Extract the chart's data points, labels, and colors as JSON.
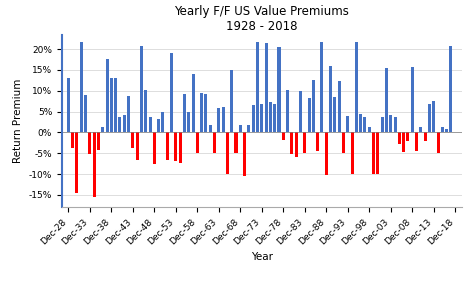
{
  "title": "Yearly F/F US Value Premiums\n1928 - 2018",
  "xlabel": "Year",
  "ylabel": "Return Premium",
  "xlabels": [
    "Dec-28",
    "Dec-33",
    "Dec-38",
    "Dec-43",
    "Dec-48",
    "Dec-53",
    "Dec-58",
    "Dec-63",
    "Dec-68",
    "Dec-73",
    "Dec-78",
    "Dec-83",
    "Dec-88",
    "Dec-93",
    "Dec-98",
    "Dec-03",
    "Dec-08",
    "Dec-13",
    "Dec-18"
  ],
  "ylim": [
    -0.18,
    0.235
  ],
  "yticks": [
    -0.15,
    -0.1,
    -0.05,
    0.0,
    0.05,
    0.1,
    0.15,
    0.2
  ],
  "ytick_labels": [
    "-15%",
    "-10%",
    "-5%",
    "0%",
    "5%",
    "10%",
    "15%",
    "20%"
  ],
  "color_pos": "#4472C4",
  "color_neg": "#FF0000",
  "values": [
    0.1296,
    -0.0382,
    -0.1445,
    0.2167,
    0.089,
    -0.0518,
    -0.1545,
    -0.0413,
    0.0121,
    0.1773,
    0.1318,
    0.1295,
    0.037,
    0.0424,
    0.0872,
    -0.0367,
    -0.0655,
    0.2074,
    0.1022,
    0.0369,
    -0.0752,
    0.0312,
    0.0484,
    -0.0661,
    0.1918,
    -0.0695,
    -0.0741,
    0.0924,
    0.048,
    0.1392,
    -0.0487,
    0.094,
    0.0932,
    0.0175,
    -0.0492,
    0.059,
    0.062,
    -0.0997,
    0.1508,
    -0.0484,
    0.0175,
    -0.1055,
    0.0184,
    0.0654,
    0.2169,
    0.0686,
    0.2153,
    0.0742,
    0.0692,
    0.2048,
    -0.0176,
    0.1019,
    -0.0525,
    -0.059,
    0.0994,
    -0.0488,
    0.0815,
    0.1264,
    -0.0445,
    0.2168,
    -0.1018,
    0.1593,
    0.0842,
    0.1234,
    -0.0487,
    0.0384,
    -0.1007,
    0.2161,
    0.0434,
    0.0377,
    0.0136,
    -0.1006,
    -0.0995,
    0.0367,
    0.1547,
    0.041,
    0.037,
    -0.0271,
    -0.0482,
    -0.0218,
    0.1564,
    -0.0436,
    0.013,
    -0.0218,
    0.0682,
    0.0764,
    -0.0489,
    0.0126,
    0.0092,
    0.2086
  ],
  "background_color": "#FFFFFF",
  "grid_color": "#D0D0D0",
  "left_spine_color": "#4472C4",
  "title_fontsize": 8.5,
  "axis_label_fontsize": 7.5,
  "tick_fontsize": 6.5
}
